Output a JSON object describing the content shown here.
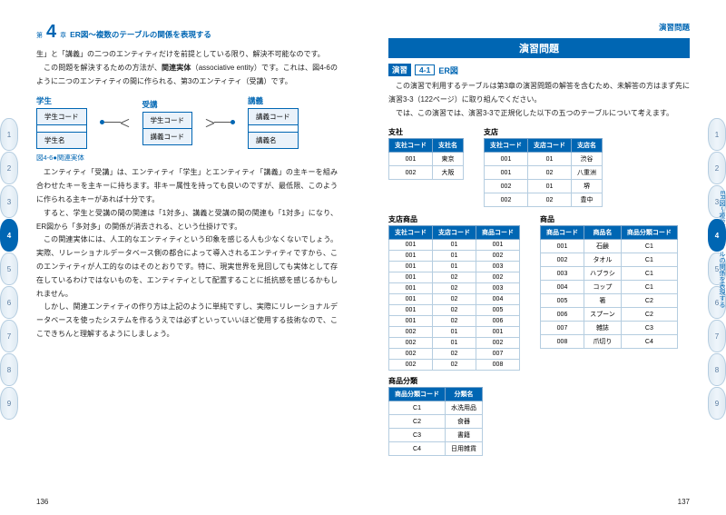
{
  "header": {
    "chapter_prefix": "第",
    "chapter_num": "4",
    "chapter_suffix": "章",
    "chapter_title": "ER図～複数のテーブルの関係を表現する",
    "right_header": "演習問題"
  },
  "left": {
    "para1": "生」と「講義」の二つのエンティティだけを前提としている限り、解決不可能なのです。",
    "para2_a": "この問題を解決するための方法が、",
    "bold1": "関連実体",
    "para2_b": "（associative entity）です。これは、図4-6のように二つのエンティティの間に作られる、第3のエンティティ（受講）です。",
    "er_entities": {
      "student": {
        "title": "学生",
        "rows": [
          "学生コード",
          "学生名"
        ]
      },
      "enroll": {
        "title": "受講",
        "rows": [
          "学生コード",
          "講義コード"
        ]
      },
      "lecture": {
        "title": "講義",
        "rows": [
          "講義コード",
          "講義名"
        ]
      }
    },
    "figcap": "図4-6●関連実体",
    "para3": "エンティティ「受講」は、エンティティ「学生」とエンティティ「講義」の主キーを組み合わせたキーを主キーに持ちます。非キー属性を持っても良いのですが、最低限、このように作られる主キーがあれば十分です。",
    "para4": "すると、学生と受講の間の関連は「1対多」、講義と受講の間の関連も「1対多」になり、ER図から「多対多」の関係が消去される、という仕掛けです。",
    "para5": "この関連実体には、人工的なエンティティという印象を感じる人も少なくないでしょう。実際、リレーショナルデータベース側の都合によって導入されるエンティティですから、このエンティティが人工的なのはそのとおりです。特に、現実世界を見回しても実体として存在しているわけではないものを、エンティティとして配置することに抵抗感を感じるかもしれません。",
    "para6": "しかし、関連エンティティの作り方は上記のように単純ですし、実際にリレーショナルデータベースを使ったシステムを作るうえでは必ずといっていいほど使用する技術なので、ここできちんと理解するようにしましょう。",
    "page_num": "136"
  },
  "right": {
    "banner": "演習問題",
    "ex_tag": "演習",
    "ex_no": "4-1",
    "ex_name": "ER図",
    "intro1": "この演習で利用するテーブルは第3章の演習問題の解答を含むため、未解答の方はまず先に演習3-3（122ページ）に取り組んでください。",
    "intro2": "では、この演習では、演習3-3で正規化した以下の五つのテーブルについて考えます。",
    "tables": {
      "shisha": {
        "label": "支社",
        "headers": [
          "支社コード",
          "支社名"
        ],
        "rows": [
          [
            "001",
            "東京"
          ],
          [
            "002",
            "大阪"
          ]
        ]
      },
      "shiten": {
        "label": "支店",
        "headers": [
          "支社コード",
          "支店コード",
          "支店名"
        ],
        "rows": [
          [
            "001",
            "01",
            "渋谷"
          ],
          [
            "001",
            "02",
            "八重洲"
          ],
          [
            "002",
            "01",
            "堺"
          ],
          [
            "002",
            "02",
            "豊中"
          ]
        ]
      },
      "shitenshohin": {
        "label": "支店商品",
        "headers": [
          "支社コード",
          "支店コード",
          "商品コード"
        ],
        "rows": [
          [
            "001",
            "01",
            "001"
          ],
          [
            "001",
            "01",
            "002"
          ],
          [
            "001",
            "01",
            "003"
          ],
          [
            "001",
            "02",
            "002"
          ],
          [
            "001",
            "02",
            "003"
          ],
          [
            "001",
            "02",
            "004"
          ],
          [
            "001",
            "02",
            "005"
          ],
          [
            "001",
            "02",
            "006"
          ],
          [
            "002",
            "01",
            "001"
          ],
          [
            "002",
            "01",
            "002"
          ],
          [
            "002",
            "02",
            "007"
          ],
          [
            "002",
            "02",
            "008"
          ]
        ]
      },
      "shohin": {
        "label": "商品",
        "headers": [
          "商品コード",
          "商品名",
          "商品分類コード"
        ],
        "rows": [
          [
            "001",
            "石鹸",
            "C1"
          ],
          [
            "002",
            "タオル",
            "C1"
          ],
          [
            "003",
            "ハブラシ",
            "C1"
          ],
          [
            "004",
            "コップ",
            "C1"
          ],
          [
            "005",
            "箸",
            "C2"
          ],
          [
            "006",
            "スプーン",
            "C2"
          ],
          [
            "007",
            "雑誌",
            "C3"
          ],
          [
            "008",
            "爪切り",
            "C4"
          ]
        ]
      },
      "bunrui": {
        "label": "商品分類",
        "headers": [
          "商品分類コード",
          "分類名"
        ],
        "rows": [
          [
            "C1",
            "水洗用品"
          ],
          [
            "C2",
            "食器"
          ],
          [
            "C3",
            "書籍"
          ],
          [
            "C4",
            "日用雑貨"
          ]
        ]
      }
    },
    "page_num": "137"
  },
  "vlabel": "ER図～複数のテーブルの関係を表現する",
  "tabs": [
    "1",
    "2",
    "3",
    "4",
    "5",
    "6",
    "7",
    "8",
    "9"
  ],
  "active_tab": "4"
}
